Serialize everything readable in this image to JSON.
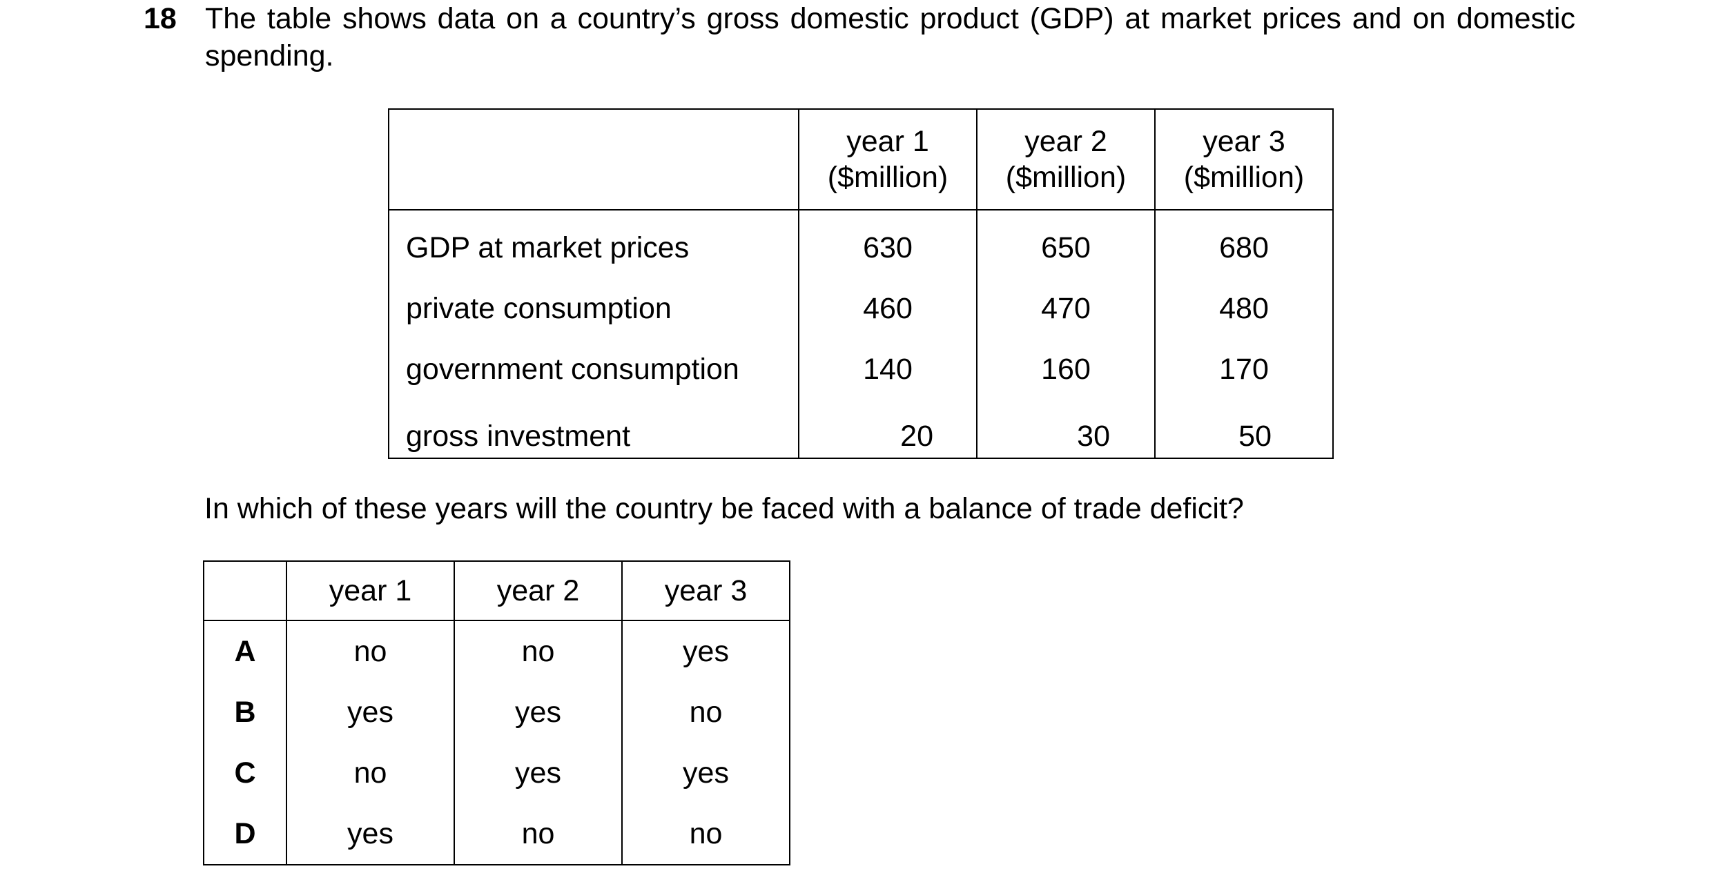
{
  "question_number": "18",
  "intro_text": "The table shows data on a country’s gross domestic product (GDP) at market prices and on domestic spending.",
  "data_table": {
    "headers": [
      "",
      {
        "line1": "year 1",
        "line2": "($million)"
      },
      {
        "line1": "year 2",
        "line2": "($million)"
      },
      {
        "line1": "year 3",
        "line2": "($million)"
      }
    ],
    "rows": [
      {
        "label": "GDP at market prices",
        "values": [
          "630",
          "650",
          "680"
        ]
      },
      {
        "label": "private consumption",
        "values": [
          "460",
          "470",
          "480"
        ]
      },
      {
        "label": "government consumption",
        "values": [
          "140",
          "160",
          "170"
        ]
      },
      {
        "label": "gross investment",
        "values": [
          "20",
          "30",
          "50"
        ]
      }
    ]
  },
  "question_text": "In which of these years will the country be faced with a balance of trade deficit?",
  "answer_table": {
    "headers": [
      "",
      "year 1",
      "year 2",
      "year 3"
    ],
    "rows": [
      {
        "key": "A",
        "values": [
          "no",
          "no",
          "yes"
        ]
      },
      {
        "key": "B",
        "values": [
          "yes",
          "yes",
          "no"
        ]
      },
      {
        "key": "C",
        "values": [
          "no",
          "yes",
          "yes"
        ]
      },
      {
        "key": "D",
        "values": [
          "yes",
          "no",
          "no"
        ]
      }
    ]
  }
}
